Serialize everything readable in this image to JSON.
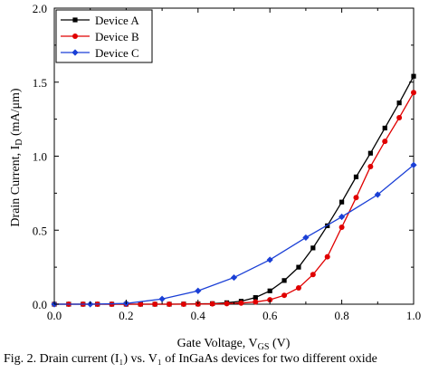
{
  "chart_data": {
    "type": "line",
    "xlabel": "Gate Voltage, V",
    "xlabel_sub": "GS",
    "xlabel_unit": " (V)",
    "ylabel": "Drain Current, I",
    "ylabel_sub": "D",
    "ylabel_unit": " (mA/μm)",
    "xlim": [
      0,
      1.0
    ],
    "ylim": [
      0,
      2.0
    ],
    "xticks": [
      "0.0",
      "0.2",
      "0.4",
      "0.6",
      "0.8",
      "1.0"
    ],
    "yticks": [
      "0.0",
      "0.5",
      "1.0",
      "1.5",
      "2.0"
    ],
    "legend_position": "top-left",
    "series": [
      {
        "name": "Device A",
        "color": "#000000",
        "marker": "square",
        "x": [
          0.0,
          0.04,
          0.08,
          0.12,
          0.16,
          0.2,
          0.24,
          0.28,
          0.32,
          0.36,
          0.4,
          0.44,
          0.48,
          0.52,
          0.56,
          0.6,
          0.64,
          0.68,
          0.72,
          0.76,
          0.8,
          0.84,
          0.88,
          0.92,
          0.96,
          1.0
        ],
        "y": [
          0.0,
          0.0,
          0.0,
          0.0,
          0.0,
          0.0,
          0.0,
          0.0,
          0.0,
          0.001,
          0.002,
          0.004,
          0.01,
          0.02,
          0.045,
          0.09,
          0.16,
          0.25,
          0.38,
          0.53,
          0.69,
          0.86,
          1.02,
          1.19,
          1.36,
          1.54
        ]
      },
      {
        "name": "Device B",
        "color": "#e00000",
        "marker": "circle",
        "x": [
          0.0,
          0.04,
          0.08,
          0.12,
          0.16,
          0.2,
          0.24,
          0.28,
          0.32,
          0.36,
          0.4,
          0.44,
          0.48,
          0.52,
          0.56,
          0.6,
          0.64,
          0.68,
          0.72,
          0.76,
          0.8,
          0.84,
          0.88,
          0.92,
          0.96,
          1.0
        ],
        "y": [
          0.0,
          0.0,
          0.0,
          0.0,
          0.0,
          0.0,
          0.0,
          0.0,
          0.0,
          0.0,
          0.001,
          0.002,
          0.004,
          0.008,
          0.015,
          0.03,
          0.06,
          0.11,
          0.2,
          0.32,
          0.52,
          0.72,
          0.93,
          1.1,
          1.26,
          1.43
        ]
      },
      {
        "name": "Device C",
        "color": "#1a3fd6",
        "marker": "diamond",
        "x": [
          0.0,
          0.1,
          0.2,
          0.3,
          0.4,
          0.5,
          0.6,
          0.7,
          0.8,
          0.9,
          1.0
        ],
        "y": [
          0.0,
          0.0,
          0.005,
          0.035,
          0.09,
          0.18,
          0.3,
          0.45,
          0.59,
          0.74,
          0.94
        ]
      }
    ]
  },
  "caption": "Fig. 2. Drain current (I₁) vs. V₁ of InGaAs devices for two different oxide"
}
